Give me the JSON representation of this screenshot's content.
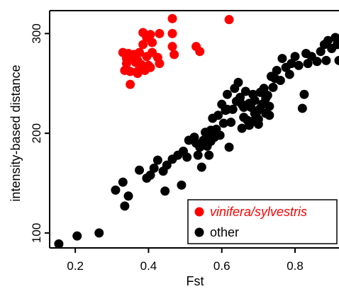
{
  "chart_data": {
    "type": "scatter",
    "title": "",
    "xlabel": "Fst",
    "ylabel": "intensity-based distance",
    "xlim": [
      0.13,
      0.92
    ],
    "ylim": [
      85,
      323
    ],
    "xticks": [
      0.2,
      0.4,
      0.6,
      0.8
    ],
    "xtick_labels": [
      "0.2",
      "0.4",
      "0.6",
      "0.8"
    ],
    "yticks": [
      100,
      200,
      300
    ],
    "ytick_labels": [
      "100",
      "200",
      "300"
    ],
    "grid": false,
    "legend_position": "bottom-right",
    "series": [
      {
        "name": "vinifera/sylvestris",
        "color": "#ff0000",
        "italic": true,
        "points": [
          [
            0.33,
            281
          ],
          [
            0.345,
            280
          ],
          [
            0.36,
            279
          ],
          [
            0.375,
            281
          ],
          [
            0.41,
            281
          ],
          [
            0.34,
            275
          ],
          [
            0.355,
            276
          ],
          [
            0.37,
            273
          ],
          [
            0.395,
            277
          ],
          [
            0.425,
            276
          ],
          [
            0.34,
            270
          ],
          [
            0.365,
            271
          ],
          [
            0.38,
            269
          ],
          [
            0.4,
            268
          ],
          [
            0.43,
            270
          ],
          [
            0.335,
            263
          ],
          [
            0.35,
            262
          ],
          [
            0.37,
            262
          ],
          [
            0.39,
            263
          ],
          [
            0.405,
            266
          ],
          [
            0.385,
            301
          ],
          [
            0.395,
            296
          ],
          [
            0.405,
            299
          ],
          [
            0.43,
            300
          ],
          [
            0.385,
            289
          ],
          [
            0.41,
            291
          ],
          [
            0.35,
            249
          ],
          [
            0.465,
            315
          ],
          [
            0.62,
            314
          ],
          [
            0.465,
            300
          ],
          [
            0.465,
            287
          ],
          [
            0.47,
            279
          ],
          [
            0.53,
            287
          ],
          [
            0.54,
            282
          ],
          [
            0.37,
            260
          ]
        ]
      },
      {
        "name": "other",
        "color": "#000000",
        "italic": false,
        "points": [
          [
            0.155,
            89
          ],
          [
            0.205,
            97
          ],
          [
            0.265,
            100
          ],
          [
            0.31,
            143
          ],
          [
            0.33,
            151
          ],
          [
            0.335,
            127
          ],
          [
            0.345,
            137
          ],
          [
            0.375,
            163
          ],
          [
            0.395,
            155
          ],
          [
            0.405,
            158
          ],
          [
            0.415,
            165
          ],
          [
            0.425,
            173
          ],
          [
            0.44,
            162
          ],
          [
            0.445,
            142
          ],
          [
            0.45,
            168
          ],
          [
            0.465,
            174
          ],
          [
            0.48,
            178
          ],
          [
            0.49,
            148
          ],
          [
            0.495,
            182
          ],
          [
            0.505,
            176
          ],
          [
            0.51,
            193
          ],
          [
            0.525,
            196
          ],
          [
            0.535,
            178
          ],
          [
            0.54,
            186
          ],
          [
            0.545,
            166
          ],
          [
            0.55,
            193
          ],
          [
            0.555,
            201
          ],
          [
            0.56,
            187
          ],
          [
            0.565,
            178
          ],
          [
            0.57,
            192
          ],
          [
            0.575,
            215
          ],
          [
            0.58,
            196
          ],
          [
            0.585,
            204
          ],
          [
            0.59,
            218
          ],
          [
            0.595,
            198
          ],
          [
            0.6,
            229
          ],
          [
            0.605,
            210
          ],
          [
            0.61,
            223
          ],
          [
            0.615,
            239
          ],
          [
            0.62,
            186
          ],
          [
            0.625,
            211
          ],
          [
            0.63,
            224
          ],
          [
            0.635,
            245
          ],
          [
            0.64,
            232
          ],
          [
            0.645,
            251
          ],
          [
            0.65,
            236
          ],
          [
            0.655,
            229
          ],
          [
            0.66,
            216
          ],
          [
            0.665,
            242
          ],
          [
            0.67,
            213
          ],
          [
            0.675,
            208
          ],
          [
            0.68,
            226
          ],
          [
            0.685,
            239
          ],
          [
            0.69,
            233
          ],
          [
            0.695,
            221
          ],
          [
            0.7,
            214
          ],
          [
            0.705,
            241
          ],
          [
            0.71,
            229
          ],
          [
            0.715,
            245
          ],
          [
            0.72,
            220
          ],
          [
            0.725,
            238
          ],
          [
            0.73,
            227
          ],
          [
            0.735,
            257
          ],
          [
            0.74,
            246
          ],
          [
            0.745,
            255
          ],
          [
            0.75,
            263
          ],
          [
            0.76,
            253
          ],
          [
            0.765,
            275
          ],
          [
            0.775,
            266
          ],
          [
            0.785,
            259
          ],
          [
            0.79,
            270
          ],
          [
            0.8,
            277
          ],
          [
            0.81,
            268
          ],
          [
            0.825,
            239
          ],
          [
            0.83,
            280
          ],
          [
            0.835,
            270
          ],
          [
            0.845,
            277
          ],
          [
            0.86,
            272
          ],
          [
            0.87,
            282
          ],
          [
            0.88,
            289
          ],
          [
            0.885,
            273
          ],
          [
            0.89,
            293
          ],
          [
            0.9,
            285
          ],
          [
            0.91,
            296
          ],
          [
            0.915,
            289
          ],
          [
            0.92,
            273
          ],
          [
            0.82,
            225
          ],
          [
            0.655,
            205
          ],
          [
            0.615,
            224
          ],
          [
            0.69,
            220
          ],
          [
            0.72,
            235
          ],
          [
            0.705,
            225
          ],
          [
            0.73,
            218
          ],
          [
            0.675,
            230
          ],
          [
            0.66,
            226
          ],
          [
            0.685,
            212
          ],
          [
            0.7,
            209
          ],
          [
            0.57,
            203
          ],
          [
            0.56,
            198
          ],
          [
            0.53,
            190
          ]
        ]
      }
    ]
  }
}
